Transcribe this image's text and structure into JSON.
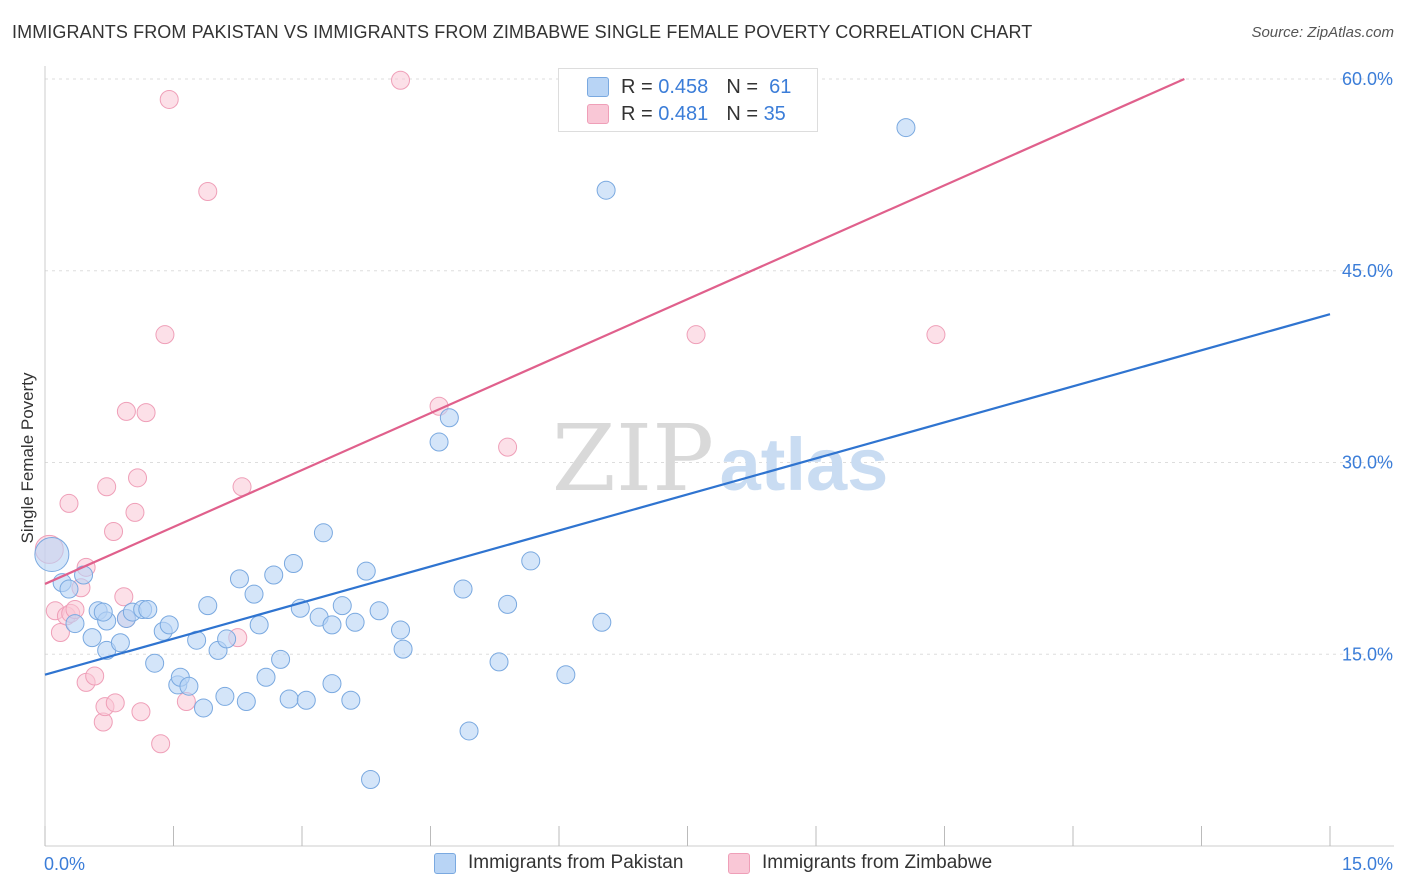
{
  "title": "IMMIGRANTS FROM PAKISTAN VS IMMIGRANTS FROM ZIMBABWE SINGLE FEMALE POVERTY CORRELATION CHART",
  "source": "Source: ZipAtlas.com",
  "watermark": {
    "zip": "ZIP",
    "atlas": "atlas"
  },
  "legend": {
    "rows": [
      {
        "r_label": "R =",
        "r_value": "0.458",
        "n_label": "N =",
        "n_value": "61"
      },
      {
        "r_label": "R =",
        "r_value": "0.481",
        "n_label": "N =",
        "n_value": "35"
      }
    ]
  },
  "colors": {
    "pakistan_fill": "#b8d4f5",
    "pakistan_stroke": "#7aa9e0",
    "pakistan_line": "#2f74d0",
    "zimbabwe_fill": "#f9c7d6",
    "zimbabwe_stroke": "#ef9fb8",
    "zimbabwe_line": "#e0608c",
    "axis_text": "#3b7dd8",
    "grid": "#dddddd"
  },
  "chart_data": {
    "type": "scatter",
    "title": "IMMIGRANTS FROM PAKISTAN VS IMMIGRANTS FROM ZIMBABWE SINGLE FEMALE POVERTY CORRELATION CHART",
    "xlabel": "",
    "ylabel": "Single Female Poverty",
    "xlim": [
      0,
      15
    ],
    "ylim": [
      0,
      60
    ],
    "x_tick_labels": [
      "0.0%",
      "15.0%"
    ],
    "y_ticks": [
      15,
      30,
      45,
      60
    ],
    "y_tick_labels": [
      "15.0%",
      "30.0%",
      "45.0%",
      "60.0%"
    ],
    "grid": true,
    "series": [
      {
        "name": "Immigrants from Pakistan",
        "color": "#2f74d0",
        "R": 0.458,
        "N": 61,
        "trend": {
          "x": [
            0,
            15
          ],
          "y": [
            13.4,
            41.6
          ]
        },
        "points": [
          [
            0.08,
            22.8
          ],
          [
            0.2,
            20.6
          ],
          [
            0.28,
            20.1
          ],
          [
            0.45,
            21.2
          ],
          [
            0.35,
            17.4
          ],
          [
            0.62,
            18.4
          ],
          [
            0.72,
            17.6
          ],
          [
            0.55,
            16.3
          ],
          [
            0.72,
            15.3
          ],
          [
            0.88,
            15.9
          ],
          [
            0.95,
            17.8
          ],
          [
            1.02,
            18.3
          ],
          [
            1.14,
            18.5
          ],
          [
            1.2,
            18.5
          ],
          [
            1.38,
            16.8
          ],
          [
            1.45,
            17.3
          ],
          [
            1.28,
            14.3
          ],
          [
            1.55,
            12.6
          ],
          [
            1.58,
            13.2
          ],
          [
            1.68,
            12.5
          ],
          [
            1.77,
            16.1
          ],
          [
            1.9,
            18.8
          ],
          [
            1.85,
            10.8
          ],
          [
            2.02,
            15.3
          ],
          [
            2.1,
            11.7
          ],
          [
            2.12,
            16.2
          ],
          [
            2.27,
            20.9
          ],
          [
            2.35,
            11.3
          ],
          [
            2.44,
            19.7
          ],
          [
            2.5,
            17.3
          ],
          [
            2.58,
            13.2
          ],
          [
            2.67,
            21.2
          ],
          [
            2.75,
            14.6
          ],
          [
            2.85,
            11.5
          ],
          [
            2.9,
            22.1
          ],
          [
            2.98,
            18.6
          ],
          [
            3.05,
            11.4
          ],
          [
            3.2,
            17.9
          ],
          [
            3.25,
            24.5
          ],
          [
            3.35,
            17.3
          ],
          [
            3.35,
            12.7
          ],
          [
            3.47,
            18.8
          ],
          [
            3.57,
            11.4
          ],
          [
            3.62,
            17.5
          ],
          [
            3.75,
            21.5
          ],
          [
            3.8,
            5.2
          ],
          [
            3.9,
            18.4
          ],
          [
            4.15,
            16.9
          ],
          [
            4.18,
            15.4
          ],
          [
            4.6,
            31.6
          ],
          [
            4.72,
            33.5
          ],
          [
            4.88,
            20.1
          ],
          [
            4.95,
            9.0
          ],
          [
            5.3,
            14.4
          ],
          [
            5.4,
            18.9
          ],
          [
            5.67,
            22.3
          ],
          [
            6.08,
            13.4
          ],
          [
            6.5,
            17.5
          ],
          [
            6.55,
            51.3
          ],
          [
            10.05,
            56.2
          ],
          [
            0.68,
            18.3
          ]
        ]
      },
      {
        "name": "Immigrants from Zimbabwe",
        "color": "#e0608c",
        "R": 0.481,
        "N": 35,
        "trend": {
          "x": [
            0,
            13.3
          ],
          "y": [
            20.5,
            60.0
          ]
        },
        "points": [
          [
            0.05,
            23.2
          ],
          [
            0.12,
            18.4
          ],
          [
            0.18,
            16.7
          ],
          [
            0.25,
            18.0
          ],
          [
            0.3,
            18.2
          ],
          [
            0.35,
            18.5
          ],
          [
            0.42,
            20.2
          ],
          [
            0.48,
            21.8
          ],
          [
            0.48,
            12.8
          ],
          [
            0.58,
            13.3
          ],
          [
            0.68,
            9.7
          ],
          [
            0.7,
            10.9
          ],
          [
            0.82,
            11.2
          ],
          [
            0.72,
            28.1
          ],
          [
            0.8,
            24.6
          ],
          [
            0.92,
            19.5
          ],
          [
            0.95,
            17.8
          ],
          [
            0.95,
            34.0
          ],
          [
            1.05,
            26.1
          ],
          [
            1.08,
            28.8
          ],
          [
            1.12,
            10.5
          ],
          [
            1.18,
            33.9
          ],
          [
            1.35,
            8.0
          ],
          [
            1.4,
            40.0
          ],
          [
            1.45,
            58.4
          ],
          [
            1.65,
            11.3
          ],
          [
            1.9,
            51.2
          ],
          [
            2.25,
            16.3
          ],
          [
            2.3,
            28.1
          ],
          [
            0.28,
            26.8
          ],
          [
            4.15,
            59.9
          ],
          [
            4.6,
            34.4
          ],
          [
            5.4,
            31.2
          ],
          [
            7.6,
            40.0
          ],
          [
            10.4,
            40.0
          ]
        ]
      }
    ]
  },
  "axes": {
    "x_min_label": "0.0%",
    "x_max_label": "15.0%"
  },
  "bottom_legend": [
    {
      "label": "Immigrants from Pakistan"
    },
    {
      "label": "Immigrants from Zimbabwe"
    }
  ]
}
